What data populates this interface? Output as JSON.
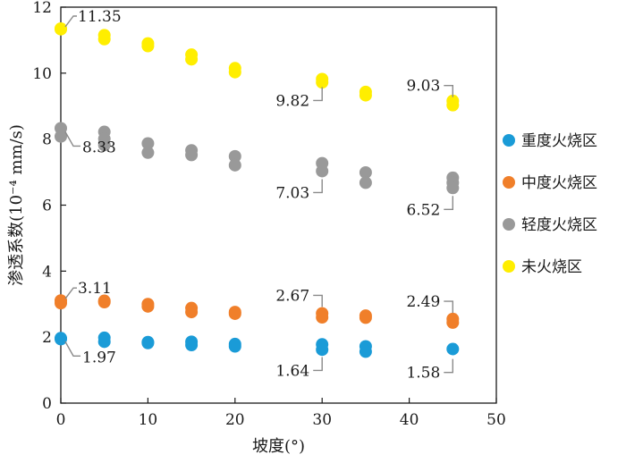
{
  "chart_data": {
    "type": "scatter",
    "xlabel": "坡度(°)",
    "ylabel": "渗透系数(10⁻⁴ mm/s)",
    "xlim": [
      0,
      50
    ],
    "ylim": [
      0,
      12
    ],
    "xticks": [
      "0",
      "10",
      "20",
      "30",
      "40",
      "50"
    ],
    "yticks": [
      "0",
      "2",
      "4",
      "6",
      "8",
      "10",
      "12"
    ],
    "grid": false,
    "legend_position": "right",
    "series": [
      {
        "name": "重度火烧区",
        "color": "#1a9bd7",
        "points": [
          [
            0,
            1.97
          ],
          [
            0,
            1.94
          ],
          [
            5,
            1.98
          ],
          [
            5,
            1.86
          ],
          [
            10,
            1.85
          ],
          [
            10,
            1.82
          ],
          [
            15,
            1.86
          ],
          [
            15,
            1.76
          ],
          [
            20,
            1.79
          ],
          [
            20,
            1.72
          ],
          [
            30,
            1.78
          ],
          [
            30,
            1.62
          ],
          [
            35,
            1.72
          ],
          [
            35,
            1.56
          ],
          [
            45,
            1.64
          ]
        ]
      },
      {
        "name": "中度火烧区",
        "color": "#f07f2a",
        "points": [
          [
            0,
            3.11
          ],
          [
            0,
            3.03
          ],
          [
            5,
            3.1
          ],
          [
            5,
            3.06
          ],
          [
            10,
            3.0
          ],
          [
            10,
            2.93
          ],
          [
            15,
            2.88
          ],
          [
            15,
            2.76
          ],
          [
            20,
            2.76
          ],
          [
            20,
            2.71
          ],
          [
            30,
            2.72
          ],
          [
            30,
            2.6
          ],
          [
            35,
            2.65
          ],
          [
            35,
            2.59
          ],
          [
            45,
            2.55
          ],
          [
            45,
            2.44
          ]
        ]
      },
      {
        "name": "轻度火烧区",
        "color": "#999999",
        "points": [
          [
            0,
            8.33
          ],
          [
            0,
            8.08
          ],
          [
            5,
            8.22
          ],
          [
            5,
            8.01
          ],
          [
            5,
            7.82
          ],
          [
            10,
            7.87
          ],
          [
            10,
            7.59
          ],
          [
            15,
            7.66
          ],
          [
            15,
            7.52
          ],
          [
            20,
            7.48
          ],
          [
            20,
            7.21
          ],
          [
            30,
            7.27
          ],
          [
            30,
            7.03
          ],
          [
            35,
            6.99
          ],
          [
            35,
            6.68
          ],
          [
            45,
            6.83
          ],
          [
            45,
            6.68
          ],
          [
            45,
            6.52
          ]
        ]
      },
      {
        "name": "未火烧区",
        "color": "#ffee00",
        "points": [
          [
            0,
            11.35
          ],
          [
            0,
            11.33
          ],
          [
            5,
            11.15
          ],
          [
            5,
            11.03
          ],
          [
            10,
            10.9
          ],
          [
            10,
            10.82
          ],
          [
            15,
            10.56
          ],
          [
            15,
            10.42
          ],
          [
            20,
            10.15
          ],
          [
            20,
            10.03
          ],
          [
            30,
            9.82
          ],
          [
            30,
            9.72
          ],
          [
            35,
            9.43
          ],
          [
            35,
            9.33
          ],
          [
            45,
            9.16
          ],
          [
            45,
            9.03
          ]
        ]
      }
    ],
    "annotations": [
      {
        "text": "11.35",
        "x": 0,
        "y": 11.35,
        "side": "right-up"
      },
      {
        "text": "8.33",
        "x": 0,
        "y": 8.33,
        "side": "right-down"
      },
      {
        "text": "3.11",
        "x": 0,
        "y": 3.11,
        "side": "right-up"
      },
      {
        "text": "1.97",
        "x": 0,
        "y": 1.97,
        "side": "right-down"
      },
      {
        "text": "9.82",
        "x": 30,
        "y": 9.82,
        "side": "left-down"
      },
      {
        "text": "7.03",
        "x": 30,
        "y": 7.03,
        "side": "left-down"
      },
      {
        "text": "2.67",
        "x": 30,
        "y": 2.67,
        "side": "left-up"
      },
      {
        "text": "1.64",
        "x": 30,
        "y": 1.64,
        "side": "left-down"
      },
      {
        "text": "9.03",
        "x": 45,
        "y": 9.03,
        "side": "left-up"
      },
      {
        "text": "6.52",
        "x": 45,
        "y": 6.52,
        "side": "left-down"
      },
      {
        "text": "2.49",
        "x": 45,
        "y": 2.49,
        "side": "left-up"
      },
      {
        "text": "1.58",
        "x": 45,
        "y": 1.58,
        "side": "left-down"
      }
    ]
  }
}
